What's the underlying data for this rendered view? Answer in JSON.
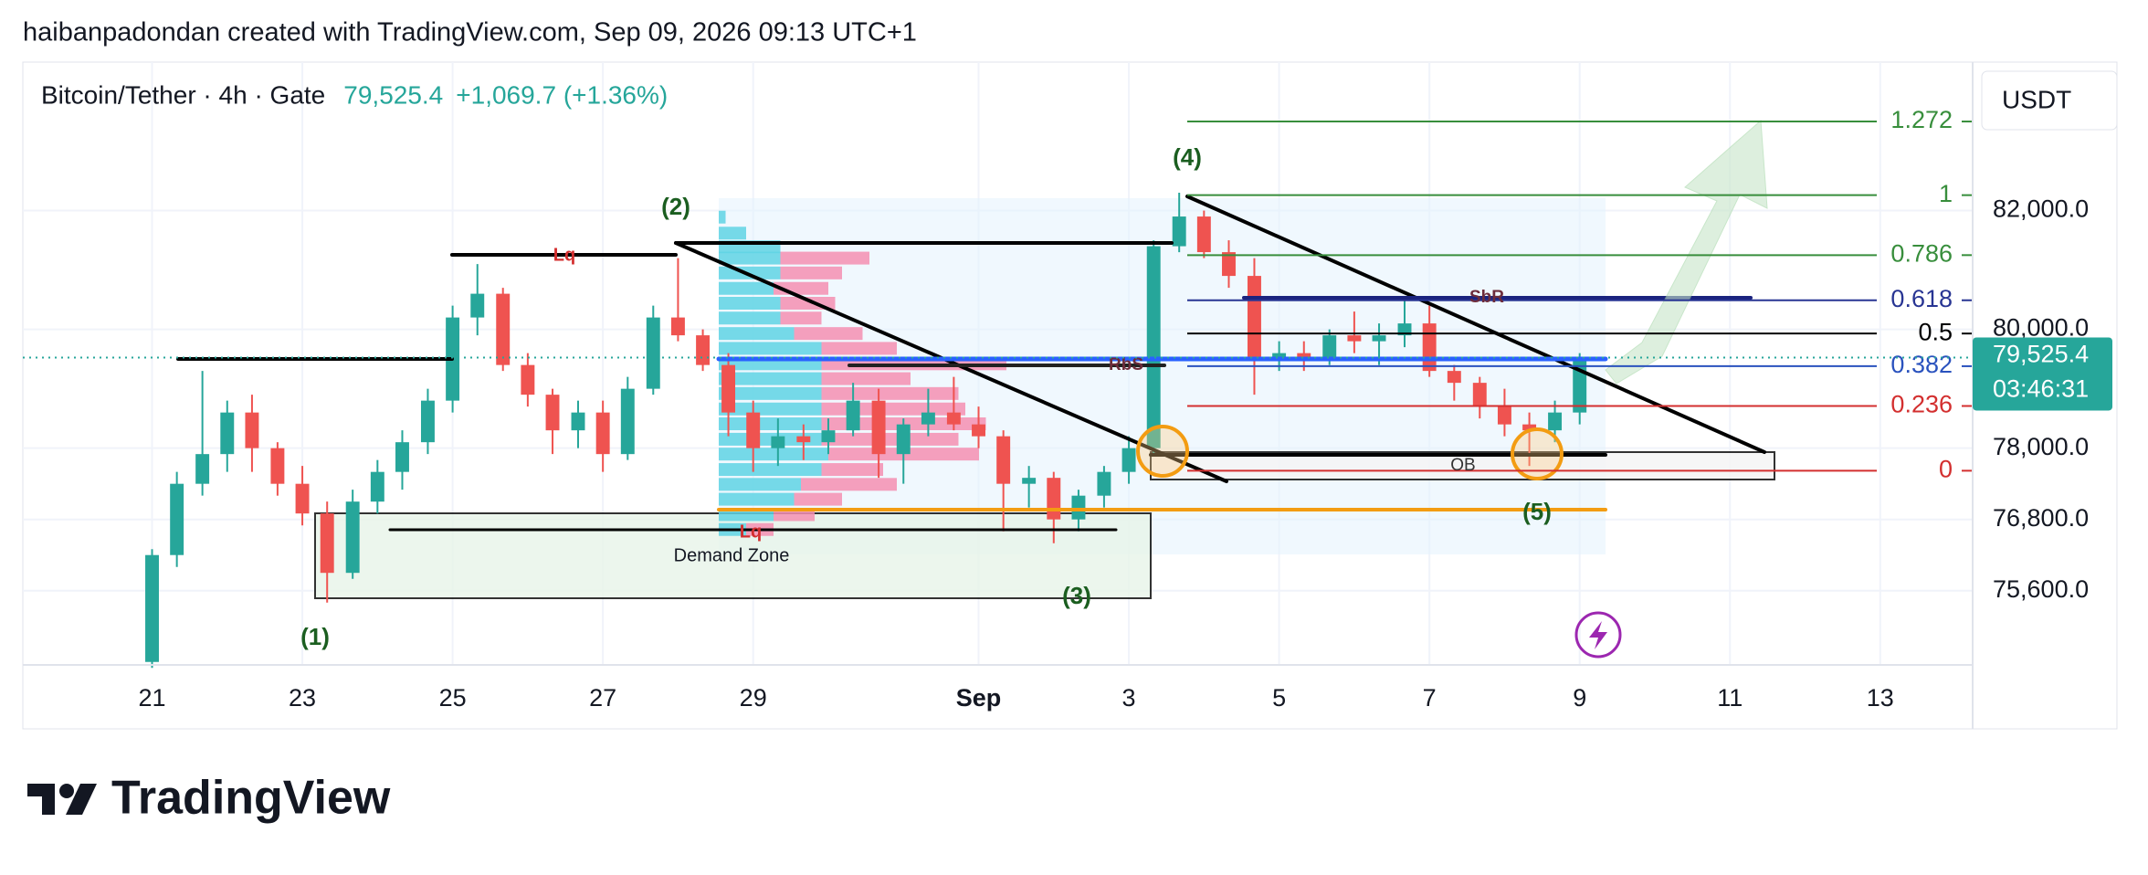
{
  "header": "haibanpadondan created with TradingView.com, Sep 09, 2026 09:13 UTC+1",
  "logo": "TradingView",
  "chart_data": {
    "type": "candlestick",
    "title": "Bitcoin/Tether · 4h · Gate",
    "last_price": {
      "value": 79525.4,
      "label": "79,525.4"
    },
    "change": "+1,069.7 (+1.36%)",
    "countdown": "03:46:31",
    "currency": "USDT",
    "up_color": "#26a69a",
    "down_color": "#ef5350",
    "grid": true,
    "x": [
      21.0,
      21.33,
      21.67,
      22.0,
      22.33,
      22.67,
      23.0,
      23.33,
      23.67,
      24.0,
      24.33,
      24.67,
      25.0,
      25.33,
      25.67,
      26.0,
      26.33,
      26.67,
      27.0,
      27.33,
      27.67,
      28.0,
      28.33,
      28.67,
      29.0,
      29.33,
      29.67,
      30.0,
      30.33,
      30.67,
      31.0,
      31.33,
      31.67,
      32.0,
      32.33,
      32.67,
      33.0,
      33.33,
      33.67,
      34.0,
      34.33,
      34.67,
      35.0,
      35.33,
      35.67,
      36.0,
      36.33,
      36.67,
      37.0,
      37.33,
      37.67,
      38.0,
      38.33,
      38.67,
      39.0,
      39.33,
      39.67,
      40.0
    ],
    "open": [
      74400,
      76200,
      77400,
      77900,
      78600,
      78000,
      77400,
      76900,
      75900,
      77100,
      77600,
      78100,
      78800,
      80200,
      80600,
      79400,
      78900,
      78300,
      78600,
      77900,
      79000,
      80200,
      79900,
      79400,
      78600,
      78000,
      78200,
      78100,
      78300,
      78800,
      77900,
      78400,
      78600,
      78400,
      78200,
      77400,
      77500,
      76800,
      77200,
      77600,
      78000,
      81400,
      81900,
      81300,
      80900,
      79500,
      79600,
      79500,
      79900,
      79800,
      79900,
      80100,
      79300,
      79100,
      78700,
      78400,
      78300,
      78600
    ],
    "high": [
      76300,
      77600,
      79300,
      78800,
      78900,
      78100,
      77700,
      77100,
      77300,
      77800,
      78300,
      79000,
      80400,
      81100,
      80700,
      79600,
      79000,
      78800,
      78800,
      79200,
      80400,
      81200,
      80000,
      79600,
      78800,
      78500,
      78400,
      78500,
      79100,
      79000,
      78500,
      79000,
      79200,
      78700,
      78300,
      77700,
      77600,
      77300,
      77700,
      78200,
      81500,
      82300,
      82000,
      81500,
      81200,
      79800,
      79800,
      80000,
      80300,
      80100,
      80500,
      80400,
      79400,
      79200,
      79000,
      78600,
      78800,
      79600
    ],
    "low": [
      74300,
      76000,
      77200,
      77600,
      77600,
      77200,
      76700,
      75400,
      75800,
      76900,
      77300,
      77900,
      78600,
      79900,
      79300,
      78700,
      77900,
      78000,
      77600,
      77800,
      78900,
      79800,
      79300,
      78200,
      77600,
      77700,
      77800,
      77900,
      78200,
      77500,
      77400,
      78200,
      78300,
      78000,
      76600,
      77000,
      76400,
      76600,
      77000,
      77400,
      77900,
      81300,
      81200,
      80700,
      78900,
      79300,
      79300,
      79400,
      79600,
      79400,
      79700,
      79200,
      78800,
      78500,
      78200,
      77700,
      78100,
      78400
    ],
    "close": [
      76200,
      77400,
      77900,
      78600,
      78000,
      77400,
      76900,
      75900,
      77100,
      77600,
      78100,
      78800,
      80200,
      80600,
      79400,
      78900,
      78300,
      78600,
      77900,
      79000,
      80200,
      79900,
      79400,
      78600,
      78000,
      78200,
      78100,
      78300,
      78800,
      77900,
      78400,
      78600,
      78400,
      78200,
      77400,
      77500,
      76800,
      77200,
      77600,
      78000,
      81400,
      81900,
      81300,
      80900,
      79500,
      79600,
      79500,
      79900,
      79800,
      79900,
      80100,
      79300,
      79100,
      78700,
      78400,
      78300,
      78600,
      79525.4
    ],
    "xlim": [
      19.28,
      45.23
    ],
    "xticks": [
      21,
      23,
      25,
      27,
      29,
      {
        "value": 32,
        "label": "Sep"
      },
      {
        "value": 34,
        "label": "3"
      },
      {
        "value": 36,
        "label": "5"
      },
      {
        "value": 38,
        "label": "7"
      },
      {
        "value": 40,
        "label": "9"
      },
      {
        "value": 42,
        "label": "11"
      },
      {
        "value": 44,
        "label": "13"
      }
    ],
    "ylim": [
      74350,
      84500
    ],
    "yticks": [
      {
        "value": 82000,
        "label": "82,000.0"
      },
      {
        "value": 80000,
        "label": "80,000.0"
      },
      {
        "value": 78000,
        "label": "78,000.0"
      },
      {
        "value": 76800,
        "label": "76,800.0"
      },
      {
        "value": 75600,
        "label": "75,600.0"
      }
    ],
    "fib": {
      "levels": [
        1.272,
        1,
        0.786,
        0.618,
        0.5,
        0.382,
        0.236,
        0
      ],
      "prices": [
        83500,
        82260,
        81250,
        80490,
        79930,
        79380,
        78710,
        77620
      ],
      "colors": [
        "#388e3c",
        "#388e3c",
        "#388e3c",
        "#283593",
        "#000000",
        "#2a52be",
        "#d32f2f",
        "#d32f2f"
      ]
    },
    "volume_profile": {
      "prices": [
        81890,
        81620,
        81390,
        81200,
        80950,
        80690,
        80440,
        80190,
        79930,
        79680,
        79420,
        79170,
        78920,
        78660,
        78410,
        78150,
        77900,
        77640,
        77390,
        77140,
        76880,
        76630
      ],
      "buy": [
        5,
        20,
        45,
        45,
        45,
        40,
        45,
        45,
        55,
        75,
        75,
        75,
        75,
        75,
        75,
        75,
        80,
        75,
        60,
        55,
        40,
        20
      ],
      "sell": [
        0,
        0,
        0,
        65,
        45,
        40,
        40,
        30,
        50,
        55,
        135,
        65,
        100,
        105,
        120,
        100,
        110,
        45,
        70,
        35,
        30,
        20
      ],
      "buy_color": "#5fd3e4",
      "sell_color": "#f48fb1"
    },
    "annotations": [
      "(1)",
      "(2)",
      "(3)",
      "(4)",
      "(5)",
      "Lq",
      "Lq",
      "SbR",
      "RbS",
      "OB",
      "Demand Zone"
    ]
  }
}
